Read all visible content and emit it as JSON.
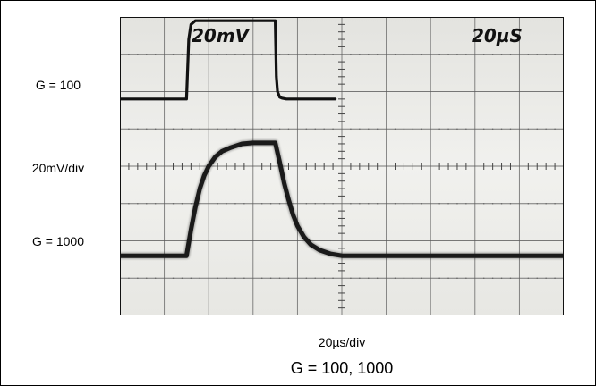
{
  "labels": {
    "gain_high": "G = 100",
    "vertical_scale": "20mV/div",
    "gain_low": "G = 1000",
    "horizontal_scale": "20µs/div",
    "caption": "G = 100, 1000"
  },
  "chart_data": {
    "type": "line",
    "title": "G = 100, 1000",
    "xlabel": "20µs/div",
    "ylabel": "20mV/div",
    "screen_annotations": [
      "20mV",
      "20µS"
    ],
    "x_unit": "µs",
    "y_unit": "mV",
    "xlim": [
      0,
      200
    ],
    "ylim": [
      -80,
      80
    ],
    "grid": true,
    "divisions": {
      "x": 10,
      "y": 8
    },
    "series": [
      {
        "name": "G = 100",
        "color": "#111111",
        "x": [
          0,
          29.9,
          30,
          31,
          32,
          34,
          40,
          70,
          69.9,
          70,
          70.5,
          71,
          72,
          73,
          75,
          80,
          97
        ],
        "y": [
          36,
          36,
          36,
          68,
          76,
          78,
          78,
          78,
          78,
          78,
          48,
          40,
          37,
          36.5,
          36,
          36,
          36
        ]
      },
      {
        "name": "G = 1000",
        "color": "#1a1a1a",
        "x": [
          0,
          30,
          32,
          34,
          36,
          38,
          40,
          43,
          46,
          50,
          55,
          60,
          70,
          72,
          74,
          76,
          78,
          80,
          83,
          86,
          90,
          95,
          100,
          200
        ],
        "y": [
          -48,
          -48,
          -34,
          -22,
          -12,
          -5,
          0,
          5,
          8,
          10,
          12,
          12.5,
          12.5,
          2,
          -9,
          -18,
          -26,
          -32,
          -38,
          -42,
          -45,
          -47,
          -48,
          -48
        ]
      }
    ]
  }
}
